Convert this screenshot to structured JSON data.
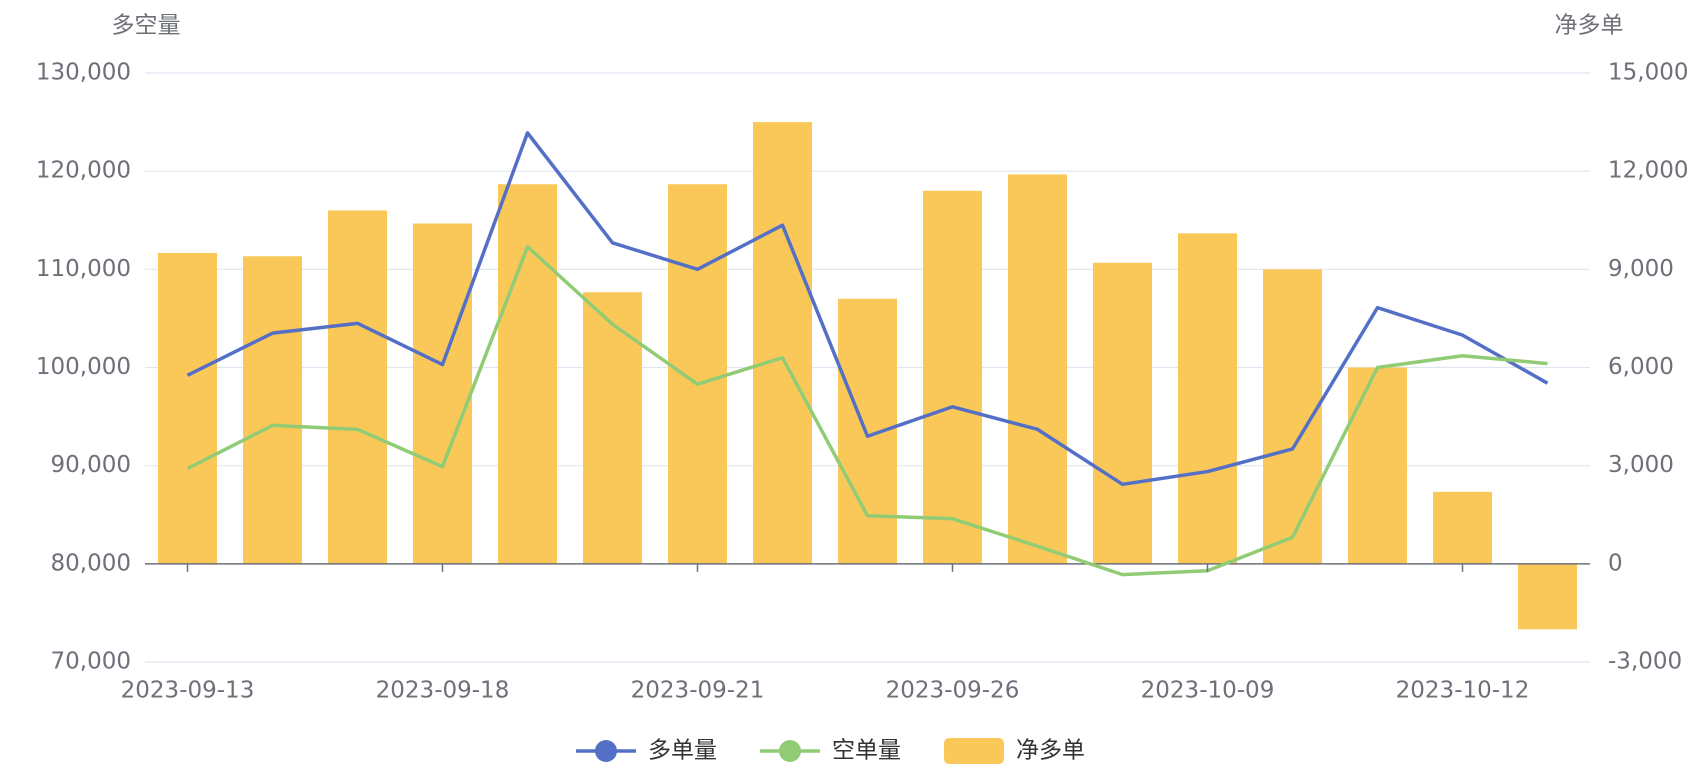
{
  "chart_data": {
    "type": "bar-line",
    "y_label": "多空量",
    "y2_label": "净多单",
    "categories": [
      "2023-09-13",
      null,
      null,
      "2023-09-18",
      null,
      null,
      "2023-09-21",
      null,
      null,
      "2023-09-26",
      null,
      null,
      "2023-10-09",
      null,
      null,
      "2023-10-12",
      null
    ],
    "series": [
      {
        "name": "多单量",
        "type": "line",
        "color": "#5470c6",
        "axis": "y",
        "values": [
          99200,
          103500,
          104500,
          100300,
          123900,
          112700,
          110000,
          114500,
          93000,
          96000,
          93700,
          88100,
          89400,
          91700,
          106100,
          103300,
          98400
        ]
      },
      {
        "name": "空单量",
        "type": "line",
        "color": "#91cc75",
        "axis": "y",
        "values": [
          89700,
          94100,
          93700,
          89900,
          112300,
          104400,
          98300,
          101000,
          84900,
          84600,
          81800,
          78900,
          79300,
          82700,
          100000,
          101200,
          100400
        ]
      },
      {
        "name": "净多单",
        "type": "bar",
        "color": "#fac858",
        "axis": "y2",
        "values": [
          9500,
          9400,
          10800,
          10400,
          11600,
          8300,
          11600,
          13500,
          8100,
          11400,
          11900,
          9200,
          10100,
          9000,
          6000,
          2200,
          -2000
        ]
      }
    ],
    "ylim": [
      70000,
      130000
    ],
    "yticks": [
      {
        "value": 70000,
        "label": "70,000"
      },
      {
        "value": 80000,
        "label": "80,000"
      },
      {
        "value": 90000,
        "label": "90,000"
      },
      {
        "value": 100000,
        "label": "100,000"
      },
      {
        "value": 110000,
        "label": "110,000"
      },
      {
        "value": 120000,
        "label": "120,000"
      },
      {
        "value": 130000,
        "label": "130,000"
      }
    ],
    "y2lim": [
      -3000,
      15000
    ],
    "y2ticks": [
      {
        "value": -3000,
        "label": "-3,000"
      },
      0,
      {
        "value": 3000,
        "label": "3,000"
      },
      {
        "value": 6000,
        "label": "6,000"
      },
      {
        "value": 9000,
        "label": "9,000"
      },
      {
        "value": 12000,
        "label": "12,000"
      },
      {
        "value": 15000,
        "label": "15,000"
      }
    ],
    "grid": true,
    "legend": "bottom"
  }
}
